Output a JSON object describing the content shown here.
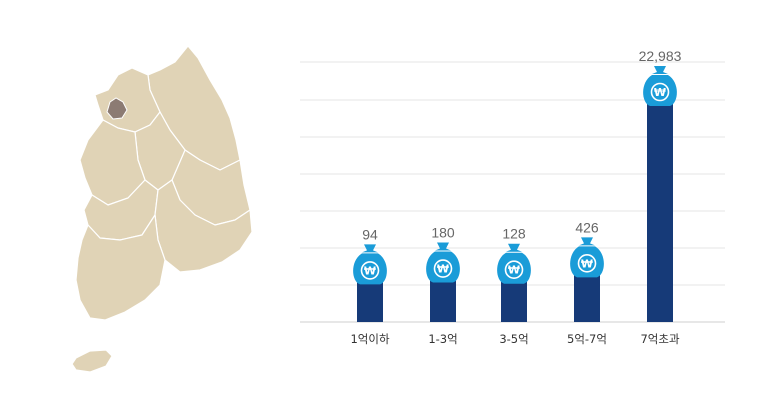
{
  "chart_data": {
    "type": "bar",
    "title": "",
    "xlabel": "",
    "ylabel": "",
    "categories": [
      "1억이하",
      "1-3억",
      "3-5억",
      "5억-7억",
      "7억초과"
    ],
    "values": [
      94,
      180,
      128,
      426,
      22983
    ],
    "value_labels": [
      "94",
      "180",
      "128",
      "426",
      "22,983"
    ],
    "grid": true,
    "bar_color": "#163a78",
    "marker_color": "#1a9cd8",
    "marker_icon": "money-bag-icon",
    "marker_symbol": "₩"
  },
  "map": {
    "highlight_region": "서울",
    "base_color": "#e0d3b6",
    "highlight_color": "#8c7b73"
  }
}
